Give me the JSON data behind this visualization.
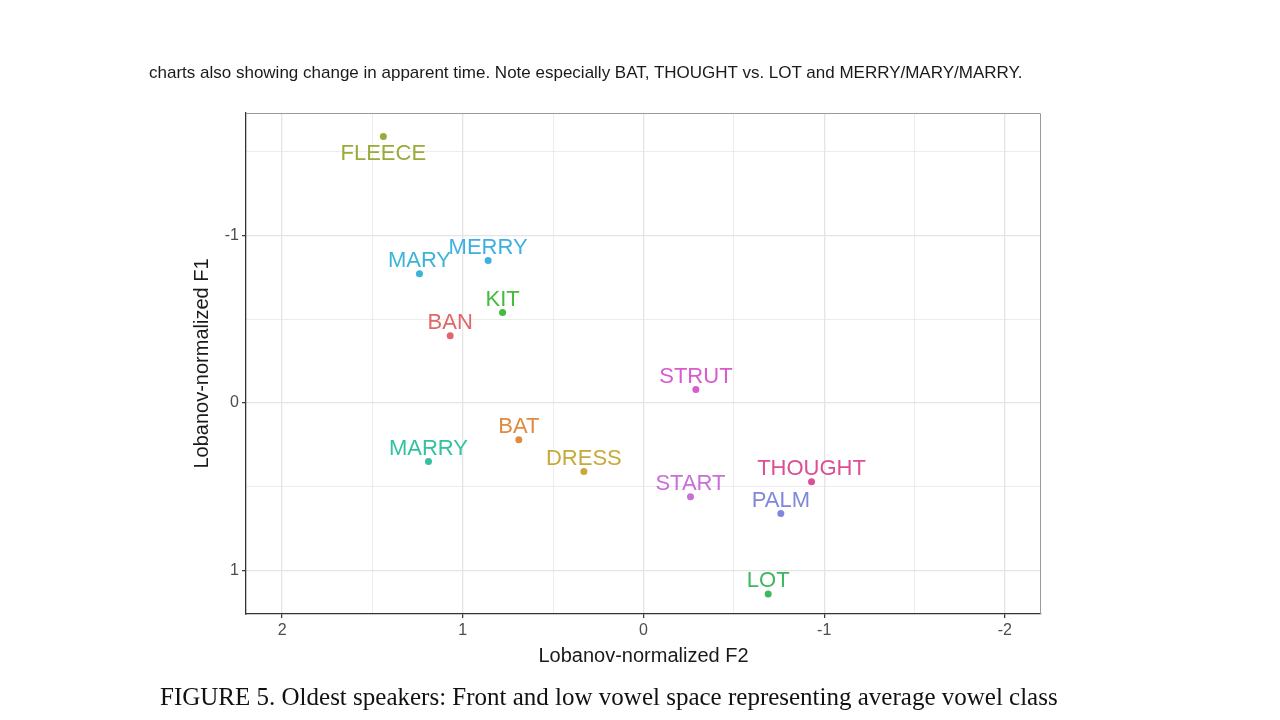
{
  "chart_data": {
    "type": "scatter",
    "annotations": [
      "charts also showing change in apparent time. Note especially BAT, THOUGHT vs. LOT and MERRY/MARY/MARRY.",
      "FIGURE 5. Oldest speakers: Front and low vowel space representing average vowel class"
    ],
    "xlabel": "Lobanov-normalized F2",
    "ylabel": "Lobanov-normalized F1",
    "xlim": [
      2.2,
      -2.2
    ],
    "ylim": [
      1.26,
      -1.73
    ],
    "xticks": [
      2,
      {
        "value": 1.5,
        "label": null
      },
      1,
      {
        "value": 0.5,
        "label": null
      },
      0,
      {
        "value": -0.5,
        "label": null
      },
      -1,
      {
        "value": -1.5,
        "label": null
      },
      -2
    ],
    "yticks": [
      {
        "value": -1.5,
        "label": null
      },
      -1,
      {
        "value": -0.5,
        "label": null
      },
      0,
      {
        "value": 0.5,
        "label": null
      },
      1
    ],
    "grid": true,
    "marker": "circle",
    "series": [
      {
        "name": "FLEECE",
        "color": "#9aab3a",
        "x": [
          1.44
        ],
        "values": [
          -1.59
        ]
      },
      {
        "name": "MARY",
        "color": "#3cb4d8",
        "x": [
          1.24
        ],
        "values": [
          -0.77
        ]
      },
      {
        "name": "MERRY",
        "color": "#3cb0e0",
        "x": [
          0.86
        ],
        "values": [
          -0.85
        ]
      },
      {
        "name": "KIT",
        "color": "#44bb3a",
        "x": [
          0.78
        ],
        "values": [
          -0.54
        ]
      },
      {
        "name": "BAN",
        "color": "#e0686a",
        "x": [
          1.07
        ],
        "values": [
          -0.4
        ]
      },
      {
        "name": "STRUT",
        "color": "#d95ccf",
        "x": [
          -0.29
        ],
        "values": [
          -0.08
        ]
      },
      {
        "name": "BAT",
        "color": "#e08b3e",
        "x": [
          0.69
        ],
        "values": [
          0.22
        ]
      },
      {
        "name": "MARRY",
        "color": "#33c29f",
        "x": [
          1.19
        ],
        "values": [
          0.35
        ]
      },
      {
        "name": "DRESS",
        "color": "#c7a93a",
        "x": [
          0.33
        ],
        "values": [
          0.41
        ]
      },
      {
        "name": "START",
        "color": "#c86fd8",
        "x": [
          -0.26
        ],
        "values": [
          0.56
        ]
      },
      {
        "name": "THOUGHT",
        "color": "#dc4f95",
        "x": [
          -0.93
        ],
        "values": [
          0.47
        ]
      },
      {
        "name": "PALM",
        "color": "#7f87dc",
        "x": [
          -0.76
        ],
        "values": [
          0.66
        ]
      },
      {
        "name": "LOT",
        "color": "#3cb860",
        "x": [
          -0.69
        ],
        "values": [
          1.14
        ]
      }
    ]
  }
}
